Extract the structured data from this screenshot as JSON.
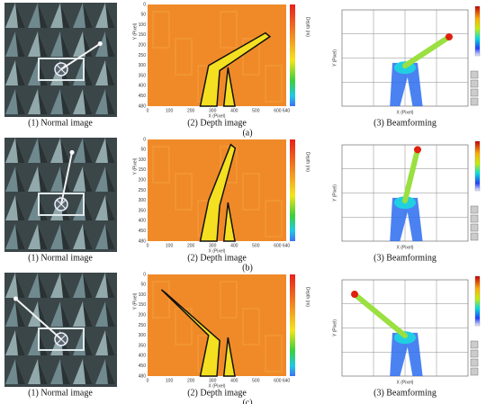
{
  "rows": [
    {
      "label": "(a)",
      "panels": [
        {
          "caption": "(1) Normal image"
        },
        {
          "caption": "(2) Depth image"
        },
        {
          "caption": "(3) Beamforming"
        }
      ]
    },
    {
      "label": "(b)",
      "panels": [
        {
          "caption": "(1) Normal image"
        },
        {
          "caption": "(2) Depth image"
        },
        {
          "caption": "(3) Beamforming"
        }
      ]
    },
    {
      "label": "(c)",
      "panels": [
        {
          "caption": "(1) Normal image"
        },
        {
          "caption": "(2) Depth image"
        },
        {
          "caption": "(3) Beamforming"
        }
      ]
    }
  ],
  "depth_axes": {
    "yticks": [
      "0",
      "50",
      "100",
      "150",
      "200",
      "250",
      "300",
      "350",
      "400",
      "450",
      "480"
    ],
    "xticks": [
      "0",
      "100",
      "200",
      "300",
      "400",
      "500",
      "600",
      "640"
    ],
    "xlabel": "X (Pixel)",
    "ylabel": "Y (Pixel)",
    "colorbar_label": "Depth (m)"
  },
  "beam_axes": {
    "xlabel": "X (Pixel)",
    "ylabel": "Y (Pixel)"
  }
}
